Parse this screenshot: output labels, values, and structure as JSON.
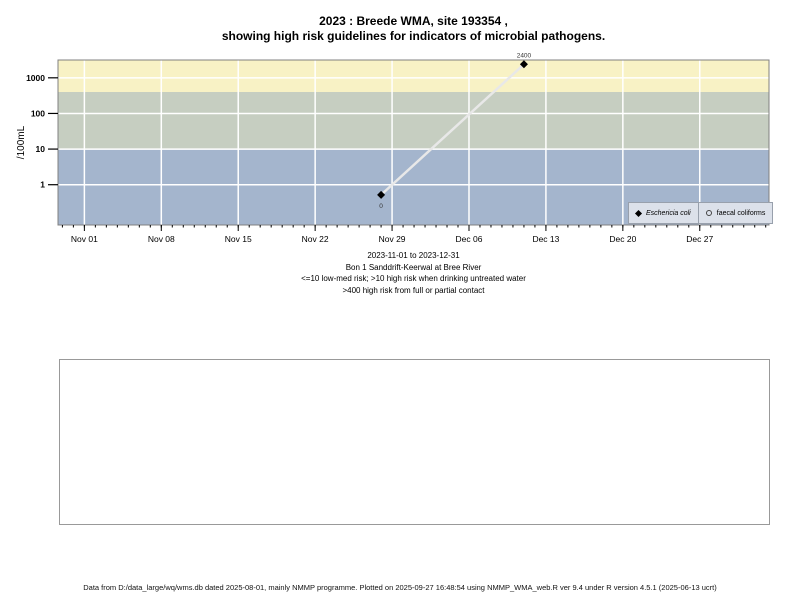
{
  "title": {
    "line1": "2023 : Breede WMA, site 193354 ,",
    "line2": "showing high risk guidelines for indicators of microbial pathogens."
  },
  "chart_data": {
    "type": "line",
    "title": "2023 : Breede WMA, site 193354 , showing high risk guidelines for indicators of microbial pathogens.",
    "ylabel": "/100mL",
    "xlabel": "",
    "y_scale": "log",
    "ylim": [
      0.074,
      3162
    ],
    "y_ticks": [
      1,
      10,
      100,
      1000
    ],
    "x_unit": "days since 2023-11-01",
    "xlim_days": [
      -2.4,
      62.3
    ],
    "x_ticks": [
      {
        "day": 0,
        "label": "Nov 01"
      },
      {
        "day": 7,
        "label": "Nov 08"
      },
      {
        "day": 14,
        "label": "Nov 15"
      },
      {
        "day": 21,
        "label": "Nov 22"
      },
      {
        "day": 28,
        "label": "Nov 29"
      },
      {
        "day": 35,
        "label": "Dec 06"
      },
      {
        "day": 42,
        "label": "Dec 13"
      },
      {
        "day": 49,
        "label": "Dec 20"
      },
      {
        "day": 56,
        "label": "Dec 27"
      }
    ],
    "minor_ticks_every_day": true,
    "grid": true,
    "grid_color": "#ffffff",
    "plot_border_color": "#808080",
    "bands": [
      {
        "name": "high risk >400",
        "from": 400,
        "to": 3162,
        "color": "#F8F2C5"
      },
      {
        "name": "med-high 10-400",
        "from": 10,
        "to": 400,
        "color": "#C6CEC1"
      },
      {
        "name": "low-med <=10",
        "from": 0.074,
        "to": 10,
        "color": "#A4B5CD"
      }
    ],
    "series": [
      {
        "name": "Eschericia coli",
        "marker": "filled-diamond",
        "marker_color": "#000000",
        "line_color": "#E8E8E8",
        "points": [
          {
            "day": 27,
            "date": "2023-11-28",
            "value": 0,
            "plotted_value": 0.52,
            "label": "0",
            "label_pos": "below"
          },
          {
            "day": 40,
            "date": "2023-12-11",
            "value": 2400,
            "plotted_value": 2400,
            "label": "2400",
            "label_pos": "above"
          }
        ]
      },
      {
        "name": "faecal coliforms",
        "marker": "open-circle",
        "marker_color": "#444444",
        "line_color": "#E8E8E8",
        "points": []
      }
    ],
    "legend": {
      "position": "bottom-right",
      "items": [
        {
          "symbol": "filled-point",
          "label": "Eschericia coli",
          "italic": true
        },
        {
          "symbol": "open-circle",
          "label": "faecal coliforms",
          "italic": false
        }
      ]
    }
  },
  "caption": {
    "lines": [
      "2023-11-01 to 2023-12-31",
      "Bon 1 Sanddrift-Keerwal at Bree River",
      "<=10 low-med risk; >10 high risk when drinking untreated water",
      ">400 high risk from full or partial contact"
    ]
  },
  "footer": {
    "text": "Data from D:/data_large/wq/wms.db dated 2025-08-01, mainly NMMP programme. Plotted on 2025-09-27 16:48:54 using NMMP_WMA_web.R ver 9.4 under R version 4.5.1 (2025-06-13 ucrt)"
  }
}
